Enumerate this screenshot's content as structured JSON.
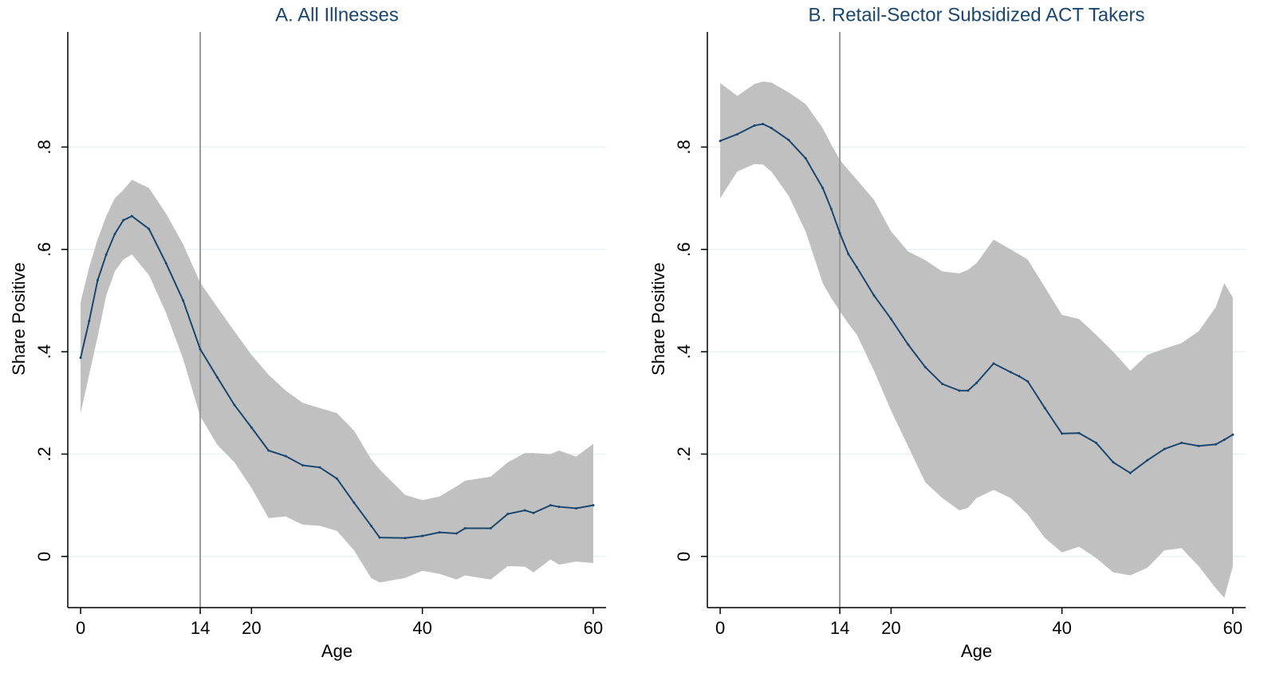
{
  "chart_data": [
    {
      "type": "line",
      "title": "A. All Illnesses",
      "x_label": "Age",
      "y_label": "Share Positive",
      "x": [
        0,
        1,
        2,
        3,
        4,
        5,
        6,
        8,
        10,
        12,
        14,
        16,
        18,
        20,
        22,
        24,
        26,
        28,
        30,
        32,
        34,
        35,
        38,
        40,
        42,
        44,
        45,
        48,
        50,
        52,
        53,
        55,
        56,
        58,
        60
      ],
      "values": [
        0.388,
        0.46,
        0.54,
        0.59,
        0.63,
        0.657,
        0.665,
        0.64,
        0.573,
        0.5,
        0.405,
        0.35,
        0.296,
        0.252,
        0.207,
        0.196,
        0.178,
        0.174,
        0.152,
        0.105,
        0.06,
        0.037,
        0.036,
        0.04,
        0.047,
        0.045,
        0.055,
        0.055,
        0.083,
        0.09,
        0.085,
        0.1,
        0.097,
        0.094,
        0.1
      ],
      "upper": [
        0.497,
        0.565,
        0.62,
        0.665,
        0.7,
        0.716,
        0.736,
        0.72,
        0.67,
        0.61,
        0.535,
        0.487,
        0.44,
        0.394,
        0.355,
        0.324,
        0.3,
        0.29,
        0.28,
        0.246,
        0.19,
        0.17,
        0.12,
        0.11,
        0.117,
        0.137,
        0.148,
        0.156,
        0.184,
        0.202,
        0.202,
        0.2,
        0.207,
        0.195,
        0.22
      ],
      "lower": [
        0.28,
        0.355,
        0.43,
        0.51,
        0.557,
        0.58,
        0.59,
        0.55,
        0.476,
        0.386,
        0.274,
        0.218,
        0.184,
        0.134,
        0.075,
        0.078,
        0.062,
        0.06,
        0.05,
        0.012,
        -0.042,
        -0.051,
        -0.042,
        -0.028,
        -0.034,
        -0.045,
        -0.037,
        -0.045,
        -0.019,
        -0.02,
        -0.031,
        -0.006,
        -0.016,
        -0.01,
        -0.013
      ],
      "color": "#1a476f",
      "band_color": "#c0c0c0",
      "vline": 14,
      "vline_color": "#999999",
      "xlim": [
        -1.5,
        61.5
      ],
      "xticks": [
        0,
        14,
        20,
        40,
        60
      ],
      "ylim": [
        -0.1,
        1.025
      ],
      "yticks": [
        0,
        {
          "value": 0.2,
          "label": ".2"
        },
        {
          "value": 0.4,
          "label": ".4"
        },
        {
          "value": 0.6,
          "label": ".6"
        },
        {
          "value": 0.8,
          "label": ".8"
        }
      ],
      "grid": true
    },
    {
      "type": "line",
      "title": "B. Retail-Sector Subsidized ACT Takers",
      "x_label": "Age",
      "y_label": "Share Positive",
      "x": [
        0,
        2,
        4,
        5,
        6,
        8,
        10,
        12,
        13,
        14,
        15,
        16,
        18,
        20,
        22,
        24,
        26,
        28,
        29,
        30,
        32,
        34,
        35,
        36,
        38,
        40,
        42,
        44,
        46,
        48,
        50,
        52,
        54,
        56,
        58,
        59,
        60
      ],
      "values": [
        0.812,
        0.825,
        0.842,
        0.845,
        0.837,
        0.814,
        0.778,
        0.72,
        0.679,
        0.632,
        0.591,
        0.565,
        0.51,
        0.464,
        0.414,
        0.37,
        0.337,
        0.324,
        0.324,
        0.339,
        0.377,
        0.36,
        0.352,
        0.342,
        0.29,
        0.24,
        0.241,
        0.222,
        0.184,
        0.163,
        0.188,
        0.21,
        0.222,
        0.216,
        0.219,
        0.228,
        0.238
      ],
      "upper": [
        0.925,
        0.9,
        0.923,
        0.928,
        0.926,
        0.907,
        0.884,
        0.837,
        0.805,
        0.775,
        0.755,
        0.736,
        0.697,
        0.635,
        0.596,
        0.579,
        0.557,
        0.553,
        0.56,
        0.573,
        0.619,
        0.6,
        0.59,
        0.58,
        0.526,
        0.472,
        0.464,
        0.433,
        0.4,
        0.363,
        0.394,
        0.406,
        0.417,
        0.44,
        0.487,
        0.534,
        0.506
      ],
      "lower": [
        0.7,
        0.752,
        0.767,
        0.766,
        0.752,
        0.705,
        0.635,
        0.534,
        0.505,
        0.479,
        0.455,
        0.433,
        0.363,
        0.285,
        0.215,
        0.145,
        0.114,
        0.09,
        0.095,
        0.114,
        0.13,
        0.114,
        0.098,
        0.082,
        0.036,
        0.008,
        0.019,
        -0.003,
        -0.031,
        -0.037,
        -0.022,
        0.012,
        0.016,
        -0.019,
        -0.062,
        -0.081,
        -0.019
      ],
      "color": "#1a476f",
      "band_color": "#c0c0c0",
      "vline": 14,
      "vline_color": "#999999",
      "xlim": [
        -1.5,
        61.5
      ],
      "xticks": [
        0,
        14,
        20,
        40,
        60
      ],
      "ylim": [
        -0.1,
        1.025
      ],
      "yticks": [
        0,
        {
          "value": 0.2,
          "label": ".2"
        },
        {
          "value": 0.4,
          "label": ".4"
        },
        {
          "value": 0.6,
          "label": ".6"
        },
        {
          "value": 0.8,
          "label": ".8"
        }
      ],
      "grid": true
    }
  ]
}
